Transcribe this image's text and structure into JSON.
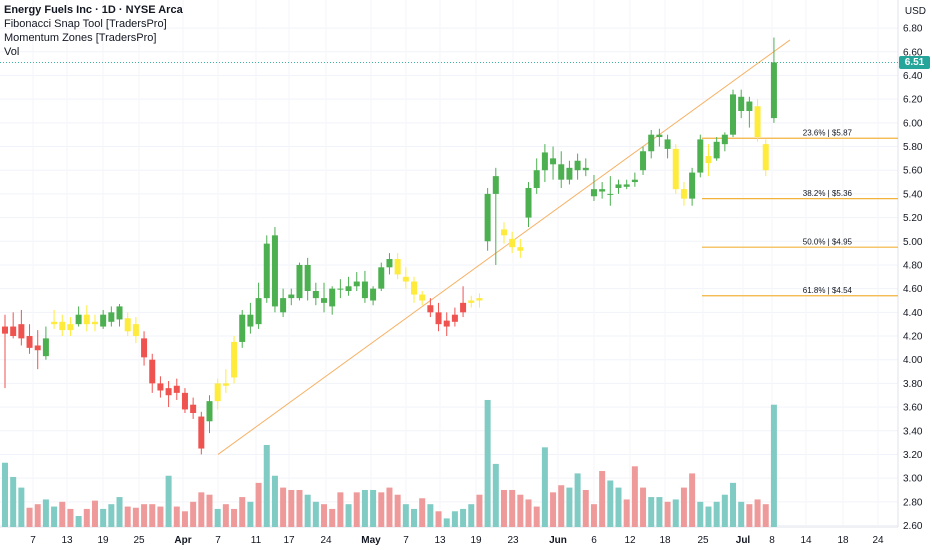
{
  "legend": {
    "title": "Energy Fuels Inc · 1D · NYSE Arca",
    "indicators": [
      "Fibonacci Snap Tool [TradersPro]",
      "Momentum Zones [TradersPro]",
      "Vol"
    ]
  },
  "currency": "USD",
  "last_price": "6.51",
  "colors": {
    "bull": "#4caf50",
    "bear": "#ef5350",
    "neutral": "#ffeb3b",
    "vol_up": "#80cbc4",
    "vol_down": "#ef9a9a",
    "fib": "#f2b33d",
    "trend": "#f7b267",
    "badge": "#26a69a"
  },
  "chart_data": {
    "type": "candlestick",
    "y_ticks": [
      "2.60",
      "2.80",
      "3.00",
      "3.20",
      "3.40",
      "3.60",
      "3.80",
      "4.00",
      "4.20",
      "4.40",
      "4.60",
      "4.80",
      "5.00",
      "5.20",
      "5.40",
      "5.60",
      "5.80",
      "6.00",
      "6.20",
      "6.40",
      "6.60",
      "6.80"
    ],
    "x_ticks": [
      "7",
      "13",
      "19",
      "25",
      "Apr",
      "7",
      "11",
      "17",
      "24",
      "May",
      "7",
      "13",
      "19",
      "23",
      "Jun",
      "6",
      "12",
      "18",
      "25",
      "Jul",
      "8",
      "14",
      "18",
      "24"
    ],
    "candles": [
      [
        4.22,
        4.38,
        3.76,
        4.28,
        "r"
      ],
      [
        4.28,
        4.4,
        4.18,
        4.2,
        "r"
      ],
      [
        4.3,
        4.42,
        4.12,
        4.18,
        "r"
      ],
      [
        4.2,
        4.3,
        4.05,
        4.1,
        "r"
      ],
      [
        4.12,
        4.25,
        3.92,
        4.08,
        "r"
      ],
      [
        4.03,
        4.28,
        4.0,
        4.18,
        "g"
      ],
      [
        4.3,
        4.42,
        4.26,
        4.32,
        "y"
      ],
      [
        4.32,
        4.38,
        4.2,
        4.25,
        "y"
      ],
      [
        4.25,
        4.36,
        4.2,
        4.3,
        "y"
      ],
      [
        4.3,
        4.45,
        4.28,
        4.38,
        "g"
      ],
      [
        4.38,
        4.46,
        4.24,
        4.3,
        "y"
      ],
      [
        4.3,
        4.38,
        4.24,
        4.32,
        "y"
      ],
      [
        4.28,
        4.42,
        4.26,
        4.38,
        "g"
      ],
      [
        4.32,
        4.45,
        4.28,
        4.4,
        "g"
      ],
      [
        4.34,
        4.47,
        4.28,
        4.45,
        "g"
      ],
      [
        4.35,
        4.4,
        4.2,
        4.24,
        "y"
      ],
      [
        4.3,
        4.36,
        4.14,
        4.2,
        "y"
      ],
      [
        4.18,
        4.24,
        3.95,
        4.02,
        "r"
      ],
      [
        4.0,
        4.05,
        3.72,
        3.8,
        "r"
      ],
      [
        3.8,
        3.86,
        3.68,
        3.74,
        "r"
      ],
      [
        3.76,
        3.82,
        3.6,
        3.7,
        "r"
      ],
      [
        3.78,
        3.84,
        3.66,
        3.72,
        "r"
      ],
      [
        3.72,
        3.76,
        3.55,
        3.58,
        "r"
      ],
      [
        3.62,
        3.68,
        3.5,
        3.55,
        "r"
      ],
      [
        3.52,
        3.56,
        3.2,
        3.25,
        "r"
      ],
      [
        3.48,
        3.7,
        3.38,
        3.65,
        "g"
      ],
      [
        3.65,
        3.84,
        3.58,
        3.8,
        "y"
      ],
      [
        3.8,
        3.92,
        3.72,
        3.78,
        "y"
      ],
      [
        3.85,
        4.2,
        3.8,
        4.15,
        "y"
      ],
      [
        4.15,
        4.42,
        4.1,
        4.38,
        "g"
      ],
      [
        4.38,
        4.48,
        4.22,
        4.28,
        "g"
      ],
      [
        4.3,
        4.65,
        4.26,
        4.52,
        "g"
      ],
      [
        4.52,
        5.05,
        4.48,
        4.98,
        "g"
      ],
      [
        5.05,
        5.12,
        4.4,
        4.45,
        "g"
      ],
      [
        4.4,
        4.6,
        4.36,
        4.52,
        "g"
      ],
      [
        4.52,
        4.6,
        4.46,
        4.55,
        "g"
      ],
      [
        4.52,
        4.82,
        4.5,
        4.8,
        "g"
      ],
      [
        4.8,
        4.86,
        4.5,
        4.58,
        "g"
      ],
      [
        4.58,
        4.65,
        4.46,
        4.52,
        "g"
      ],
      [
        4.52,
        4.65,
        4.4,
        4.48,
        "g"
      ],
      [
        4.45,
        4.62,
        4.38,
        4.6,
        "g"
      ],
      [
        4.6,
        4.68,
        4.52,
        4.6,
        "g"
      ],
      [
        4.58,
        4.7,
        4.54,
        4.62,
        "g"
      ],
      [
        4.62,
        4.74,
        4.58,
        4.66,
        "g"
      ],
      [
        4.66,
        4.75,
        4.48,
        4.52,
        "g"
      ],
      [
        4.5,
        4.62,
        4.46,
        4.6,
        "g"
      ],
      [
        4.6,
        4.82,
        4.58,
        4.78,
        "g"
      ],
      [
        4.78,
        4.9,
        4.72,
        4.85,
        "g"
      ],
      [
        4.85,
        4.9,
        4.68,
        4.72,
        "y"
      ],
      [
        4.7,
        4.78,
        4.6,
        4.66,
        "y"
      ],
      [
        4.66,
        4.7,
        4.48,
        4.55,
        "y"
      ],
      [
        4.55,
        4.58,
        4.46,
        4.5,
        "y"
      ],
      [
        4.46,
        4.52,
        4.36,
        4.4,
        "r"
      ],
      [
        4.4,
        4.48,
        4.24,
        4.3,
        "r"
      ],
      [
        4.33,
        4.4,
        4.2,
        4.28,
        "r"
      ],
      [
        4.32,
        4.44,
        4.28,
        4.38,
        "r"
      ],
      [
        4.4,
        4.62,
        4.36,
        4.48,
        "r"
      ],
      [
        4.48,
        4.54,
        4.44,
        4.5,
        "y"
      ],
      [
        4.5,
        4.56,
        4.44,
        4.52,
        "y"
      ],
      [
        5.0,
        5.45,
        4.92,
        5.4,
        "g"
      ],
      [
        5.4,
        5.62,
        4.8,
        5.55,
        "g"
      ],
      [
        5.1,
        5.16,
        4.98,
        5.05,
        "y"
      ],
      [
        5.02,
        5.08,
        4.9,
        4.95,
        "y"
      ],
      [
        4.95,
        5.02,
        4.86,
        4.92,
        "y"
      ],
      [
        5.2,
        5.5,
        5.12,
        5.45,
        "g"
      ],
      [
        5.45,
        5.7,
        5.4,
        5.6,
        "g"
      ],
      [
        5.6,
        5.82,
        5.5,
        5.75,
        "g"
      ],
      [
        5.7,
        5.8,
        5.52,
        5.65,
        "g"
      ],
      [
        5.65,
        5.76,
        5.45,
        5.52,
        "g"
      ],
      [
        5.52,
        5.68,
        5.48,
        5.62,
        "g"
      ],
      [
        5.6,
        5.74,
        5.52,
        5.68,
        "g"
      ],
      [
        5.62,
        5.7,
        5.55,
        5.6,
        "g"
      ],
      [
        5.38,
        5.56,
        5.34,
        5.44,
        "g"
      ],
      [
        5.44,
        5.5,
        5.36,
        5.42,
        "g"
      ],
      [
        5.4,
        5.55,
        5.3,
        5.4,
        "g"
      ],
      [
        5.45,
        5.52,
        5.4,
        5.48,
        "g"
      ],
      [
        5.48,
        5.52,
        5.44,
        5.46,
        "g"
      ],
      [
        5.5,
        5.58,
        5.46,
        5.52,
        "g"
      ],
      [
        5.6,
        5.8,
        5.56,
        5.76,
        "g"
      ],
      [
        5.76,
        5.94,
        5.7,
        5.9,
        "g"
      ],
      [
        5.9,
        5.95,
        5.8,
        5.88,
        "g"
      ],
      [
        5.86,
        5.9,
        5.7,
        5.78,
        "g"
      ],
      [
        5.78,
        5.82,
        5.4,
        5.44,
        "y"
      ],
      [
        5.44,
        5.5,
        5.3,
        5.36,
        "y"
      ],
      [
        5.36,
        5.62,
        5.3,
        5.58,
        "g"
      ],
      [
        5.58,
        5.9,
        5.54,
        5.86,
        "g"
      ],
      [
        5.72,
        5.82,
        5.55,
        5.66,
        "y"
      ],
      [
        5.7,
        5.88,
        5.68,
        5.84,
        "g"
      ],
      [
        5.82,
        5.92,
        5.76,
        5.9,
        "g"
      ],
      [
        5.9,
        6.28,
        5.88,
        6.24,
        "g"
      ],
      [
        6.22,
        6.28,
        6.04,
        6.1,
        "g"
      ],
      [
        6.1,
        6.22,
        5.96,
        6.18,
        "g"
      ],
      [
        6.14,
        6.2,
        5.84,
        5.88,
        "y"
      ],
      [
        5.82,
        5.86,
        5.55,
        5.6,
        "y"
      ],
      [
        6.04,
        6.72,
        6.0,
        6.51,
        "g"
      ]
    ],
    "volumes": [
      [
        3.13,
        "u"
      ],
      [
        3.01,
        "u"
      ],
      [
        2.92,
        "u"
      ],
      [
        2.75,
        "d"
      ],
      [
        2.78,
        "d"
      ],
      [
        2.82,
        "u"
      ],
      [
        2.76,
        "u"
      ],
      [
        2.8,
        "d"
      ],
      [
        2.74,
        "d"
      ],
      [
        2.68,
        "u"
      ],
      [
        2.74,
        "d"
      ],
      [
        2.81,
        "d"
      ],
      [
        2.74,
        "u"
      ],
      [
        2.78,
        "u"
      ],
      [
        2.84,
        "u"
      ],
      [
        2.76,
        "d"
      ],
      [
        2.75,
        "d"
      ],
      [
        2.78,
        "d"
      ],
      [
        2.78,
        "d"
      ],
      [
        2.76,
        "d"
      ],
      [
        3.02,
        "u"
      ],
      [
        2.76,
        "d"
      ],
      [
        2.72,
        "d"
      ],
      [
        2.8,
        "d"
      ],
      [
        2.88,
        "d"
      ],
      [
        2.86,
        "d"
      ],
      [
        2.74,
        "u"
      ],
      [
        2.78,
        "d"
      ],
      [
        2.74,
        "d"
      ],
      [
        2.84,
        "d"
      ],
      [
        2.8,
        "u"
      ],
      [
        2.96,
        "d"
      ],
      [
        3.28,
        "u"
      ],
      [
        3.02,
        "u"
      ],
      [
        2.92,
        "d"
      ],
      [
        2.9,
        "d"
      ],
      [
        2.9,
        "d"
      ],
      [
        2.86,
        "u"
      ],
      [
        2.8,
        "u"
      ],
      [
        2.78,
        "d"
      ],
      [
        2.74,
        "d"
      ],
      [
        2.88,
        "d"
      ],
      [
        2.78,
        "u"
      ],
      [
        2.88,
        "d"
      ],
      [
        2.9,
        "u"
      ],
      [
        2.9,
        "u"
      ],
      [
        2.88,
        "d"
      ],
      [
        2.92,
        "d"
      ],
      [
        2.86,
        "d"
      ],
      [
        2.78,
        "u"
      ],
      [
        2.74,
        "u"
      ],
      [
        2.83,
        "d"
      ],
      [
        2.78,
        "u"
      ],
      [
        2.72,
        "d"
      ],
      [
        2.66,
        "u"
      ],
      [
        2.72,
        "u"
      ],
      [
        2.74,
        "u"
      ],
      [
        2.78,
        "u"
      ],
      [
        2.86,
        "d"
      ],
      [
        3.66,
        "u"
      ],
      [
        3.12,
        "u"
      ],
      [
        2.9,
        "d"
      ],
      [
        2.9,
        "d"
      ],
      [
        2.86,
        "d"
      ],
      [
        2.82,
        "d"
      ],
      [
        2.76,
        "d"
      ],
      [
        3.26,
        "u"
      ],
      [
        2.88,
        "d"
      ],
      [
        2.94,
        "d"
      ],
      [
        2.92,
        "u"
      ],
      [
        3.04,
        "u"
      ],
      [
        2.9,
        "d"
      ],
      [
        2.78,
        "d"
      ],
      [
        3.06,
        "d"
      ],
      [
        2.98,
        "u"
      ],
      [
        2.92,
        "u"
      ],
      [
        2.82,
        "d"
      ],
      [
        3.1,
        "d"
      ],
      [
        2.92,
        "d"
      ],
      [
        2.84,
        "u"
      ],
      [
        2.84,
        "u"
      ],
      [
        2.8,
        "d"
      ],
      [
        2.82,
        "u"
      ],
      [
        2.92,
        "d"
      ],
      [
        3.04,
        "d"
      ],
      [
        2.8,
        "u"
      ],
      [
        2.76,
        "u"
      ],
      [
        2.8,
        "u"
      ],
      [
        2.86,
        "u"
      ],
      [
        2.96,
        "u"
      ],
      [
        2.8,
        "u"
      ],
      [
        2.78,
        "d"
      ],
      [
        2.82,
        "d"
      ],
      [
        2.78,
        "d"
      ],
      [
        3.62,
        "u"
      ]
    ],
    "fib_levels": [
      {
        "label": "23.6% | $5.87",
        "price": 5.87
      },
      {
        "label": "38.2% | $5.36",
        "price": 5.36
      },
      {
        "label": "50.0% | $4.95",
        "price": 4.95
      },
      {
        "label": "61.8% | $4.54",
        "price": 4.54
      }
    ],
    "trendline": {
      "from": [
        "Apr 7",
        3.2
      ],
      "to": [
        "Jul 10",
        6.7
      ]
    }
  }
}
